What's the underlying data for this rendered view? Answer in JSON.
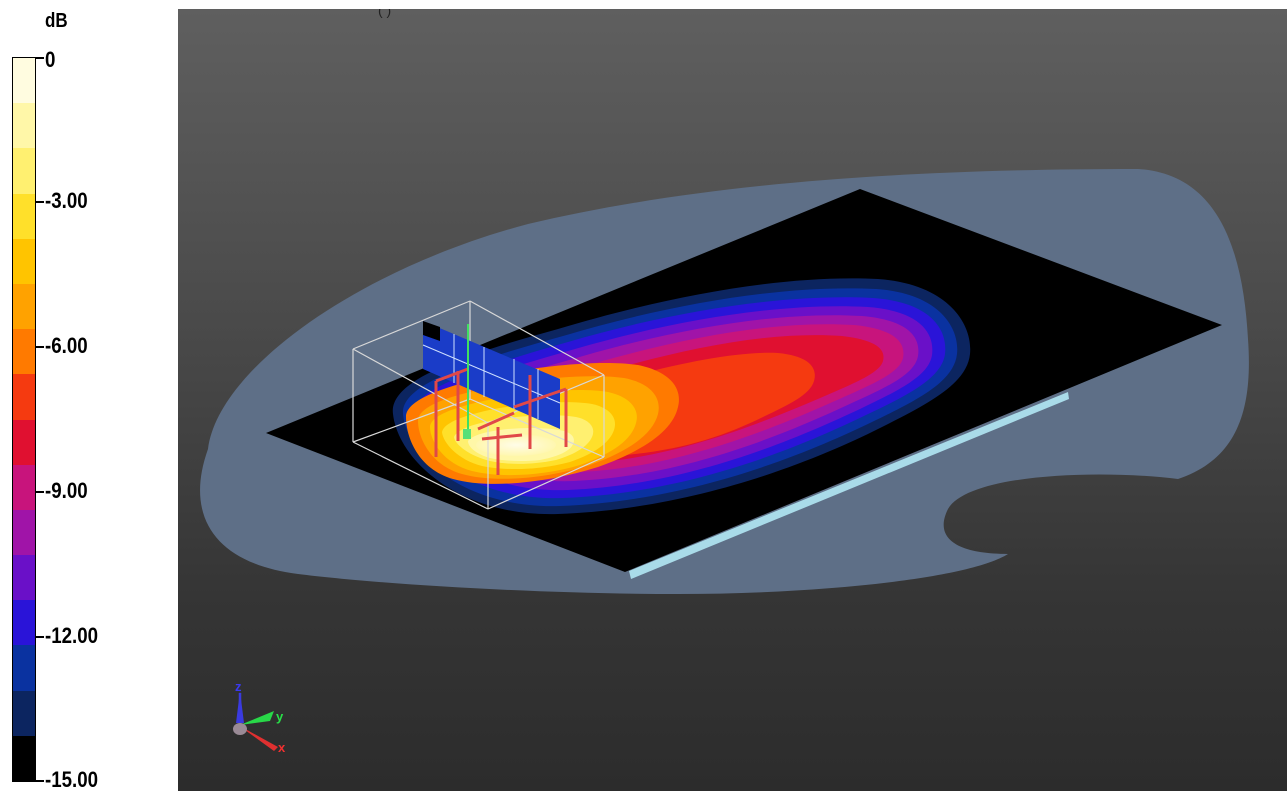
{
  "viewport": {
    "title_partial": "(                )",
    "axis_labels": {
      "x": "x",
      "y": "y",
      "z": "z"
    }
  },
  "legend": {
    "unit": "dB",
    "labels": [
      "0",
      "-3.00",
      "-6.00",
      "-9.00",
      "-12.00",
      "-15.00"
    ],
    "bands": [
      "#fffce0",
      "#fff7a8",
      "#fff070",
      "#ffe02a",
      "#ffc400",
      "#ffa200",
      "#ff7a00",
      "#f53a10",
      "#e01030",
      "#c8147c",
      "#a014a8",
      "#6a10c8",
      "#2a14d8",
      "#0a32a0",
      "#0c2560",
      "#000000"
    ]
  },
  "colors": {
    "background_top": "#5f5f5f",
    "background_bottom": "#2c2c2c",
    "ground_halo": "#5e6f87",
    "plate": "#000000",
    "edge_highlight": "#a9dbe9"
  }
}
